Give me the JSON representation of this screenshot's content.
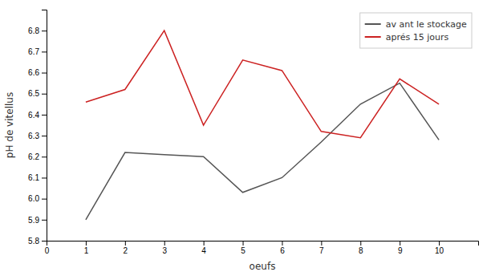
{
  "chart_data": {
    "type": "line",
    "x": [
      1,
      2,
      3,
      4,
      5,
      6,
      7,
      8,
      9,
      10
    ],
    "series": [
      {
        "name": "av ant le stockage",
        "color": "#555555",
        "values": [
          5.9,
          6.22,
          6.21,
          6.2,
          6.03,
          6.1,
          6.27,
          6.45,
          6.55,
          6.28
        ]
      },
      {
        "name": "aprés 15 jours",
        "color": "#cc2222",
        "values": [
          6.46,
          6.52,
          6.8,
          6.35,
          6.66,
          6.61,
          6.32,
          6.29,
          6.57,
          6.45
        ]
      }
    ],
    "xlabel": "oeufs",
    "ylabel": "pH de vitellus",
    "xlim": [
      0,
      11
    ],
    "ylim": [
      5.8,
      6.9
    ],
    "xticks": [
      0,
      1,
      2,
      3,
      4,
      5,
      6,
      7,
      8,
      9,
      10
    ],
    "yticks": [
      5.8,
      5.9,
      {
        "value": 6.0,
        "label": "6.0"
      },
      6.1,
      6.2,
      6.3,
      6.4,
      6.5,
      6.6,
      6.7,
      6.8
    ],
    "grid": false,
    "legend": "upper right"
  }
}
